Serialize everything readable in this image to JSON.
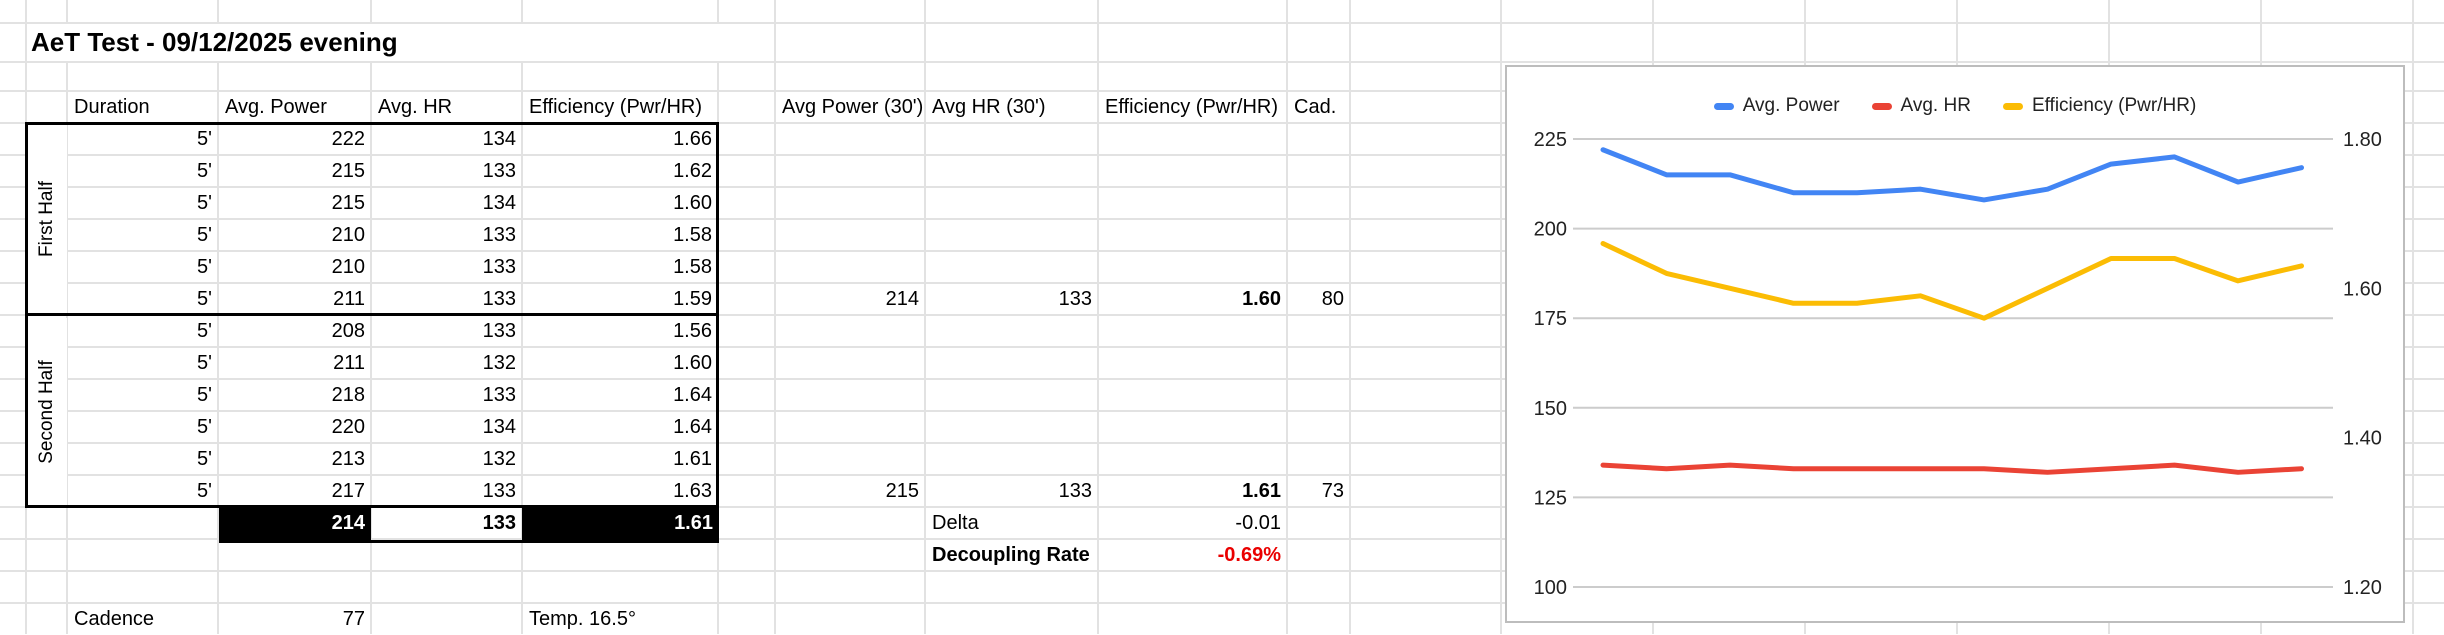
{
  "title": "AeT Test - 09/12/2025 evening",
  "table": {
    "headers": {
      "duration": "Duration",
      "power": "Avg. Power",
      "hr": "Avg. HR",
      "eff": "Efficiency (Pwr/HR)"
    },
    "halves": [
      {
        "label": "First Half",
        "rows": [
          {
            "duration": "5'",
            "power": "222",
            "hr": "134",
            "eff": "1.66"
          },
          {
            "duration": "5'",
            "power": "215",
            "hr": "133",
            "eff": "1.62"
          },
          {
            "duration": "5'",
            "power": "215",
            "hr": "134",
            "eff": "1.60"
          },
          {
            "duration": "5'",
            "power": "210",
            "hr": "133",
            "eff": "1.58"
          },
          {
            "duration": "5'",
            "power": "210",
            "hr": "133",
            "eff": "1.58"
          },
          {
            "duration": "5'",
            "power": "211",
            "hr": "133",
            "eff": "1.59"
          }
        ]
      },
      {
        "label": "Second Half",
        "rows": [
          {
            "duration": "5'",
            "power": "208",
            "hr": "133",
            "eff": "1.56"
          },
          {
            "duration": "5'",
            "power": "211",
            "hr": "132",
            "eff": "1.60"
          },
          {
            "duration": "5'",
            "power": "218",
            "hr": "133",
            "eff": "1.64"
          },
          {
            "duration": "5'",
            "power": "220",
            "hr": "134",
            "eff": "1.64"
          },
          {
            "duration": "5'",
            "power": "213",
            "hr": "132",
            "eff": "1.61"
          },
          {
            "duration": "5'",
            "power": "217",
            "hr": "133",
            "eff": "1.63"
          }
        ]
      }
    ],
    "totals": {
      "power": "214",
      "hr": "133",
      "eff": "1.61"
    }
  },
  "summary30": {
    "headers": {
      "power": "Avg Power (30')",
      "hr": "Avg HR (30')",
      "eff": "Efficiency (Pwr/HR)",
      "cad": "Cad."
    },
    "first_half": {
      "power": "214",
      "hr": "133",
      "eff": "1.60",
      "cad": "80"
    },
    "second_half": {
      "power": "215",
      "hr": "133",
      "eff": "1.61",
      "cad": "73"
    },
    "delta_label": "Delta",
    "delta_value": "-0.01",
    "decoupling_label": "Decoupling Rate",
    "decoupling_value": "-0.69%",
    "decoupling_color": "#ea0000"
  },
  "footer": {
    "cadence_label": "Cadence",
    "cadence_value": "77",
    "temp": "Temp. 16.5°"
  },
  "chart_data": {
    "type": "line",
    "num_points": 12,
    "x_axis_labels_visible": false,
    "legend_position": "top",
    "grid": true,
    "series": [
      {
        "name": "Avg. Power",
        "color": "#4285F4",
        "axis": "left",
        "values": [
          222,
          215,
          215,
          210,
          210,
          211,
          208,
          211,
          218,
          220,
          213,
          217
        ]
      },
      {
        "name": "Avg. HR",
        "color": "#EA4335",
        "axis": "left",
        "values": [
          134,
          133,
          134,
          133,
          133,
          133,
          133,
          132,
          133,
          134,
          132,
          133
        ]
      },
      {
        "name": "Efficiency (Pwr/HR)",
        "color": "#FBBC04",
        "axis": "right",
        "values": [
          1.66,
          1.62,
          1.6,
          1.58,
          1.58,
          1.59,
          1.56,
          1.6,
          1.64,
          1.64,
          1.61,
          1.63
        ]
      }
    ],
    "left_axis": {
      "min": 100,
      "max": 225,
      "ticks": [
        "225",
        "200",
        "175",
        "150",
        "125",
        "100"
      ]
    },
    "right_axis": {
      "min": 1.2,
      "max": 1.8,
      "ticks": [
        "1.80",
        "1.60",
        "1.40",
        "1.20"
      ]
    }
  }
}
